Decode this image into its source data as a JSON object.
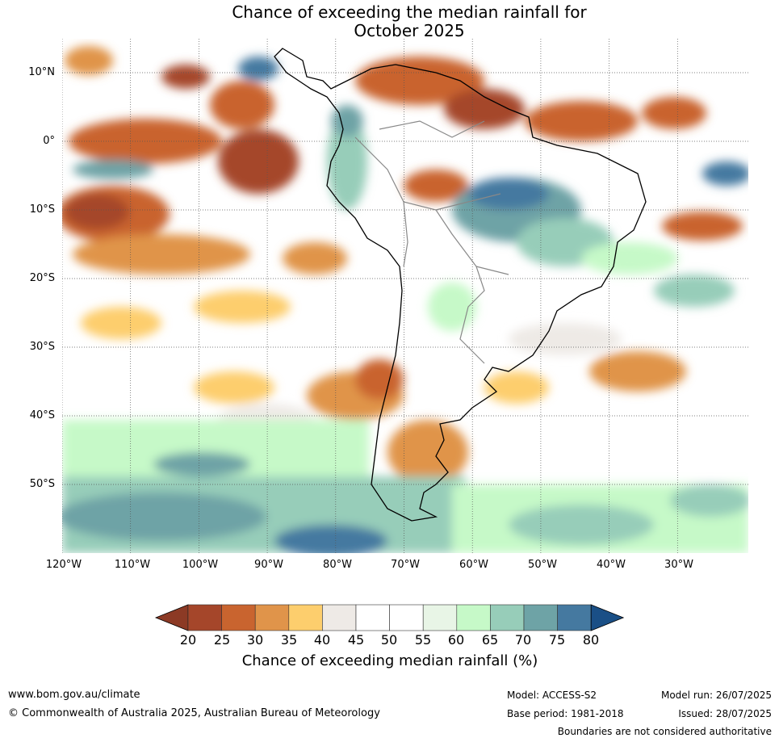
{
  "title": {
    "line1": "Chance of exceeding the median rainfall for",
    "line2": "October 2025"
  },
  "axes": {
    "lat_labels": [
      "10°N",
      "0°",
      "10°S",
      "20°S",
      "30°S",
      "40°S",
      "50°S"
    ],
    "lon_labels": [
      "120°W",
      "110°W",
      "100°W",
      "90°W",
      "80°W",
      "70°W",
      "60°W",
      "50°W",
      "40°W",
      "30°W"
    ]
  },
  "colorbar": {
    "ticks": [
      "20",
      "25",
      "30",
      "35",
      "40",
      "45",
      "50",
      "55",
      "60",
      "65",
      "70",
      "75",
      "80"
    ],
    "colors": [
      "#a5462a",
      "#c9642f",
      "#e0944a",
      "#fdce6d",
      "#eeeae6",
      "#ffffff",
      "#ffffff",
      "#e8f5e6",
      "#c6f9c8",
      "#97cdb9",
      "#6ea3a6",
      "#4579a0"
    ],
    "under_color": "#8c3a25",
    "over_color": "#1a4f86",
    "label": "Chance of exceeding median rainfall (%)"
  },
  "footer": {
    "website": "www.bom.gov.au/climate",
    "copyright": "© Commonwealth of Australia 2025, Australian Bureau of Meteorology",
    "model": "Model: ACCESS-S2",
    "base_period": "Base period: 1981-2018",
    "model_run": "Model run: 26/07/2025",
    "issued": "Issued: 28/07/2025",
    "disclaimer": "Boundaries are not considered authoritative"
  }
}
